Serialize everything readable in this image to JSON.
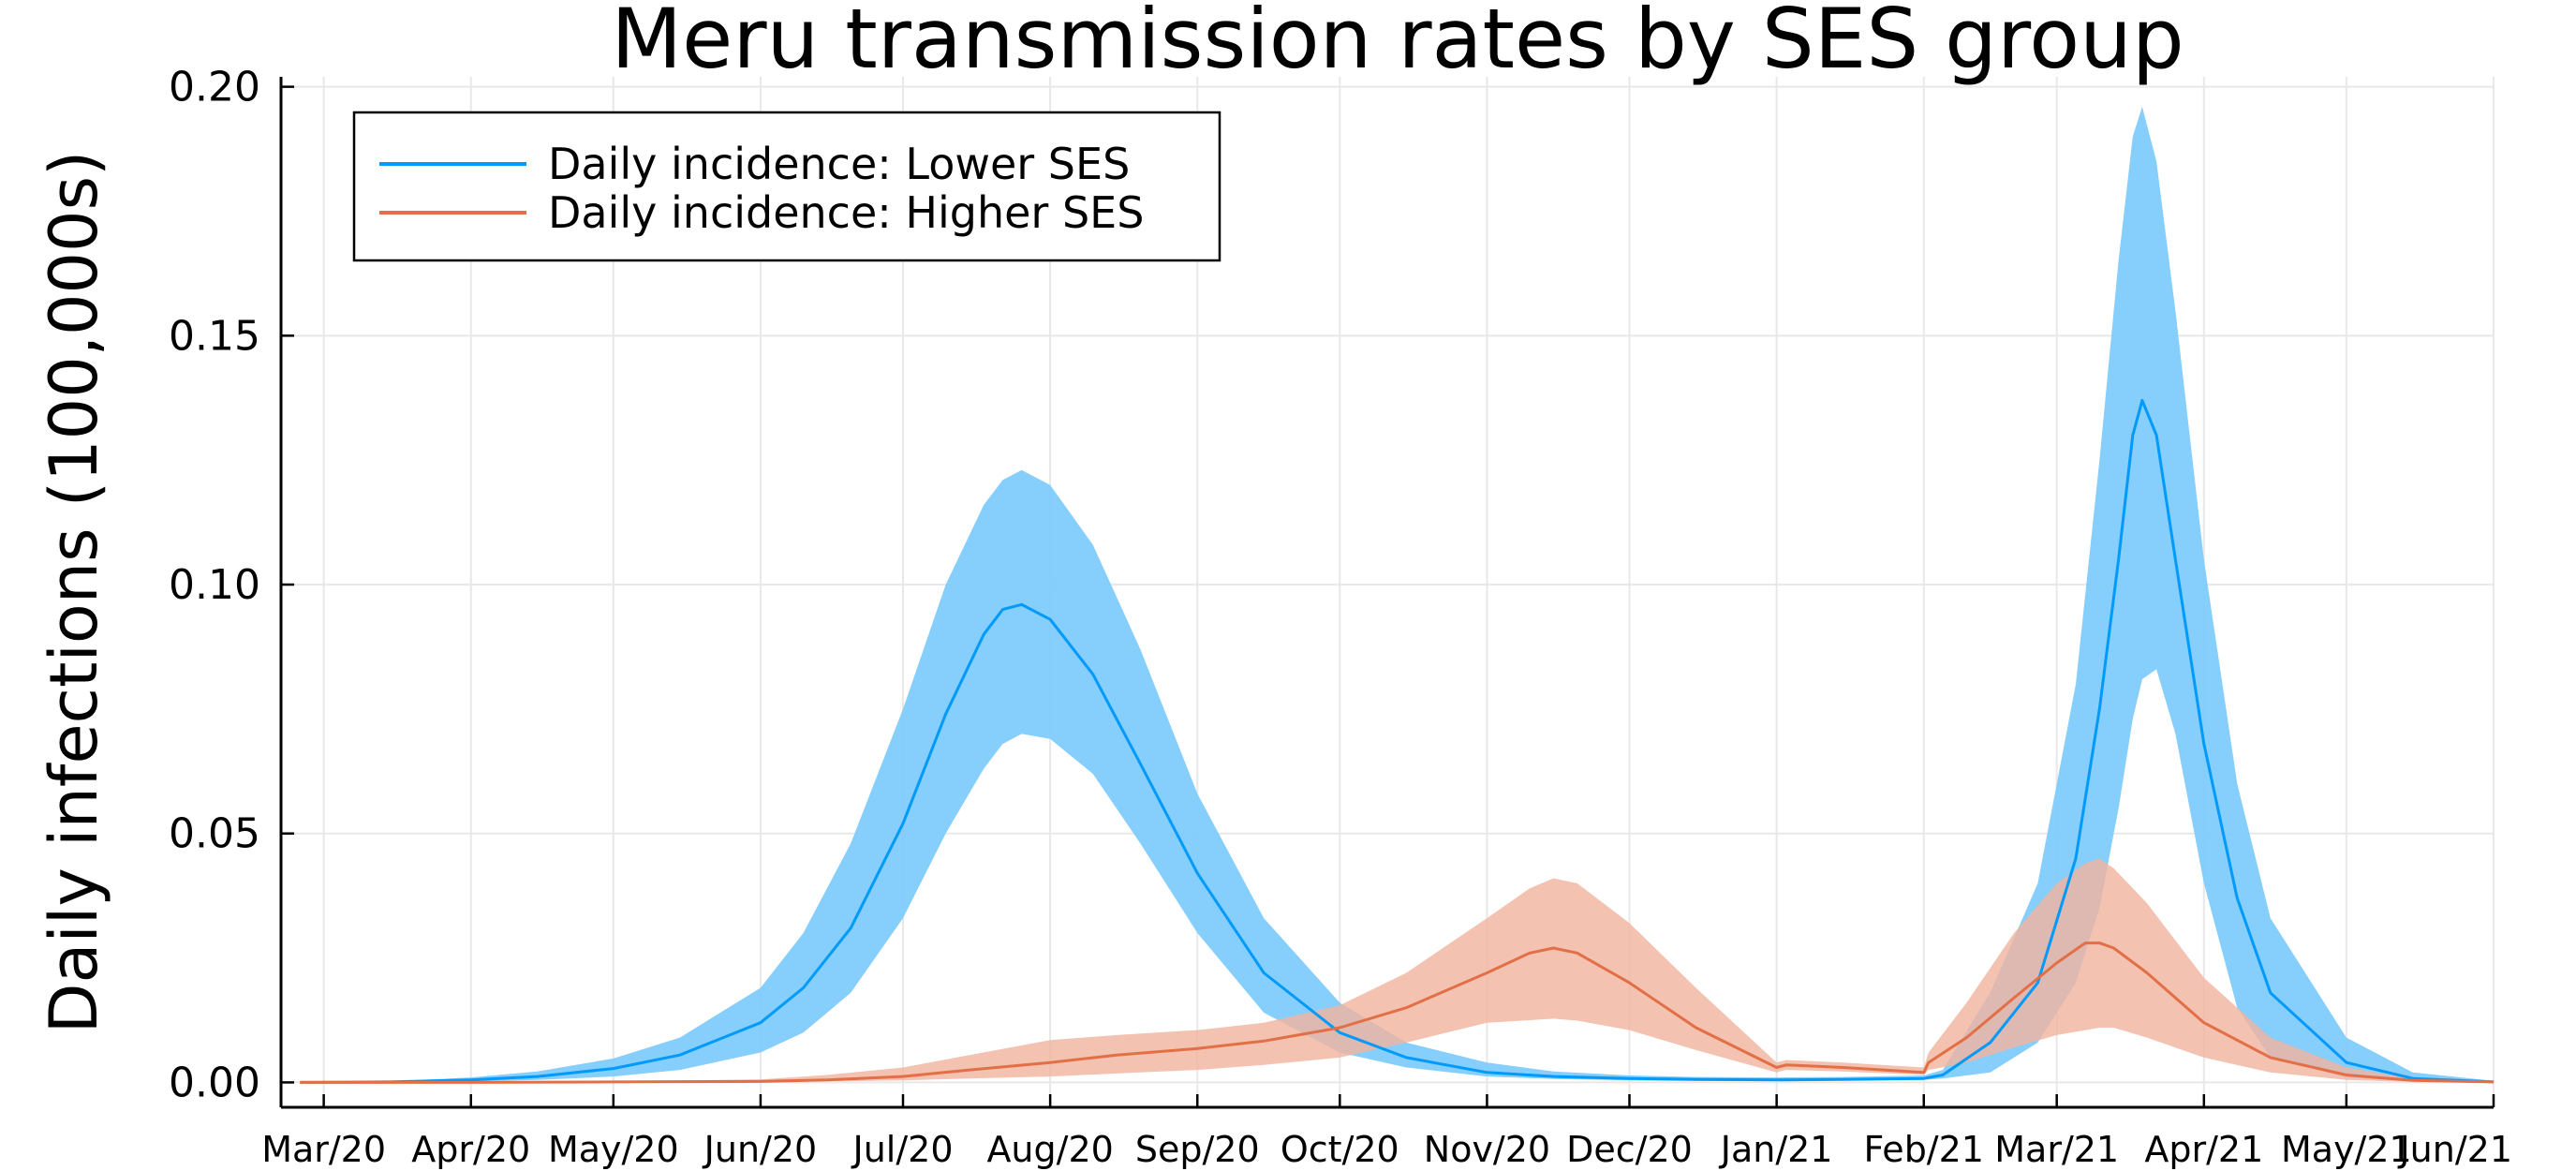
{
  "chart_data": {
    "type": "line",
    "title": "Meru transmission rates by SES group",
    "xlabel": "",
    "ylabel": "Daily infections (100,000s)",
    "x_type": "date",
    "xlim": [
      "2020-02-21",
      "2021-06-01"
    ],
    "ylim": [
      -0.005,
      0.202
    ],
    "x_ticks": [
      "2020-03-01",
      "2020-04-01",
      "2020-05-01",
      "2020-06-01",
      "2020-07-01",
      "2020-08-01",
      "2020-09-01",
      "2020-10-01",
      "2020-11-01",
      "2020-12-01",
      "2021-01-01",
      "2021-02-01",
      "2021-03-01",
      "2021-04-01",
      "2021-05-01",
      "2021-06-01"
    ],
    "x_tick_labels": [
      "Mar/20",
      "Apr/20",
      "May/20",
      "Jun/20",
      "Jul/20",
      "Aug/20",
      "Sep/20",
      "Oct/20",
      "Nov/20",
      "Dec/20",
      "Jan/21",
      "Feb/21",
      "Mar/21",
      "Apr/21",
      "May/21",
      "Jun/21"
    ],
    "y_ticks": [
      0.0,
      0.05,
      0.1,
      0.15,
      0.2
    ],
    "y_tick_labels": [
      "0.00",
      "0.05",
      "0.10",
      "0.15",
      "0.20"
    ],
    "grid": true,
    "legend_position": "top-left",
    "series": [
      {
        "name": "Daily incidence: Lower SES",
        "color": "#009AFA",
        "band_color": "#7FCBFB",
        "x": [
          "2020-02-25",
          "2020-03-15",
          "2020-04-01",
          "2020-04-15",
          "2020-05-01",
          "2020-05-15",
          "2020-06-01",
          "2020-06-10",
          "2020-06-20",
          "2020-07-01",
          "2020-07-10",
          "2020-07-18",
          "2020-07-22",
          "2020-07-26",
          "2020-08-01",
          "2020-08-10",
          "2020-08-20",
          "2020-09-01",
          "2020-09-15",
          "2020-10-01",
          "2020-10-15",
          "2020-11-01",
          "2020-11-15",
          "2020-12-01",
          "2020-12-15",
          "2021-01-01",
          "2021-01-15",
          "2021-02-01",
          "2021-02-05",
          "2021-02-15",
          "2021-02-25",
          "2021-03-05",
          "2021-03-10",
          "2021-03-14",
          "2021-03-17",
          "2021-03-19",
          "2021-03-22",
          "2021-03-26",
          "2021-04-01",
          "2021-04-08",
          "2021-04-15",
          "2021-05-01",
          "2021-05-15",
          "2021-06-01"
        ],
        "mean": [
          0.0,
          0.0001,
          0.0005,
          0.0012,
          0.0028,
          0.0055,
          0.012,
          0.019,
          0.031,
          0.052,
          0.074,
          0.09,
          0.095,
          0.096,
          0.093,
          0.082,
          0.064,
          0.042,
          0.022,
          0.01,
          0.005,
          0.002,
          0.0012,
          0.0008,
          0.0006,
          0.0005,
          0.0006,
          0.0008,
          0.0015,
          0.008,
          0.02,
          0.045,
          0.075,
          0.105,
          0.13,
          0.137,
          0.13,
          0.105,
          0.068,
          0.037,
          0.018,
          0.004,
          0.0008,
          0.0001
        ],
        "lower": [
          0.0,
          0.0,
          0.0002,
          0.0005,
          0.0012,
          0.0025,
          0.006,
          0.01,
          0.018,
          0.033,
          0.05,
          0.063,
          0.068,
          0.07,
          0.069,
          0.062,
          0.048,
          0.03,
          0.014,
          0.006,
          0.003,
          0.0012,
          0.0007,
          0.0004,
          0.0003,
          0.0003,
          0.0004,
          0.0005,
          0.0008,
          0.002,
          0.008,
          0.02,
          0.035,
          0.055,
          0.073,
          0.081,
          0.083,
          0.07,
          0.04,
          0.015,
          0.005,
          0.001,
          0.0002,
          0.0
        ],
        "upper": [
          0.0,
          0.0002,
          0.001,
          0.0022,
          0.0048,
          0.009,
          0.019,
          0.03,
          0.048,
          0.075,
          0.1,
          0.116,
          0.121,
          0.123,
          0.12,
          0.108,
          0.087,
          0.058,
          0.033,
          0.016,
          0.008,
          0.004,
          0.0022,
          0.0014,
          0.0011,
          0.001,
          0.0011,
          0.0014,
          0.0025,
          0.018,
          0.04,
          0.08,
          0.125,
          0.165,
          0.19,
          0.196,
          0.185,
          0.155,
          0.105,
          0.06,
          0.033,
          0.009,
          0.002,
          0.0003
        ]
      },
      {
        "name": "Daily incidence: Higher SES",
        "color": "#E26F46",
        "band_color": "#F0B5A0",
        "x": [
          "2020-02-25",
          "2020-04-01",
          "2020-05-01",
          "2020-06-01",
          "2020-06-15",
          "2020-07-01",
          "2020-07-15",
          "2020-08-01",
          "2020-08-15",
          "2020-09-01",
          "2020-09-15",
          "2020-10-01",
          "2020-10-15",
          "2020-11-01",
          "2020-11-10",
          "2020-11-15",
          "2020-11-20",
          "2020-12-01",
          "2020-12-15",
          "2021-01-01",
          "2021-01-03",
          "2021-01-15",
          "2021-02-01",
          "2021-02-02",
          "2021-02-10",
          "2021-02-20",
          "2021-03-01",
          "2021-03-07",
          "2021-03-10",
          "2021-03-13",
          "2021-03-20",
          "2021-04-01",
          "2021-04-15",
          "2021-05-01",
          "2021-05-15",
          "2021-06-01"
        ],
        "mean": [
          0.0,
          0.0,
          0.0001,
          0.0002,
          0.0005,
          0.0012,
          0.0025,
          0.004,
          0.0055,
          0.0068,
          0.0083,
          0.011,
          0.015,
          0.022,
          0.026,
          0.027,
          0.026,
          0.02,
          0.011,
          0.003,
          0.0035,
          0.003,
          0.002,
          0.004,
          0.009,
          0.017,
          0.024,
          0.028,
          0.028,
          0.027,
          0.022,
          0.012,
          0.005,
          0.0015,
          0.0004,
          0.0001
        ],
        "lower": [
          0.0,
          0.0,
          0.0,
          0.0001,
          0.0002,
          0.0004,
          0.0008,
          0.0012,
          0.0018,
          0.0025,
          0.0035,
          0.005,
          0.008,
          0.012,
          0.0125,
          0.0128,
          0.0124,
          0.0105,
          0.0065,
          0.002,
          0.0025,
          0.0022,
          0.0015,
          0.0025,
          0.004,
          0.007,
          0.0095,
          0.0105,
          0.011,
          0.011,
          0.009,
          0.005,
          0.002,
          0.0005,
          0.0001,
          0.0
        ],
        "upper": [
          0.0,
          0.0,
          0.0002,
          0.0006,
          0.0015,
          0.003,
          0.0055,
          0.0085,
          0.0095,
          0.0105,
          0.012,
          0.0155,
          0.022,
          0.033,
          0.039,
          0.041,
          0.04,
          0.032,
          0.019,
          0.004,
          0.0045,
          0.004,
          0.003,
          0.006,
          0.016,
          0.03,
          0.04,
          0.044,
          0.045,
          0.043,
          0.036,
          0.021,
          0.009,
          0.003,
          0.0008,
          0.0002
        ]
      }
    ]
  }
}
